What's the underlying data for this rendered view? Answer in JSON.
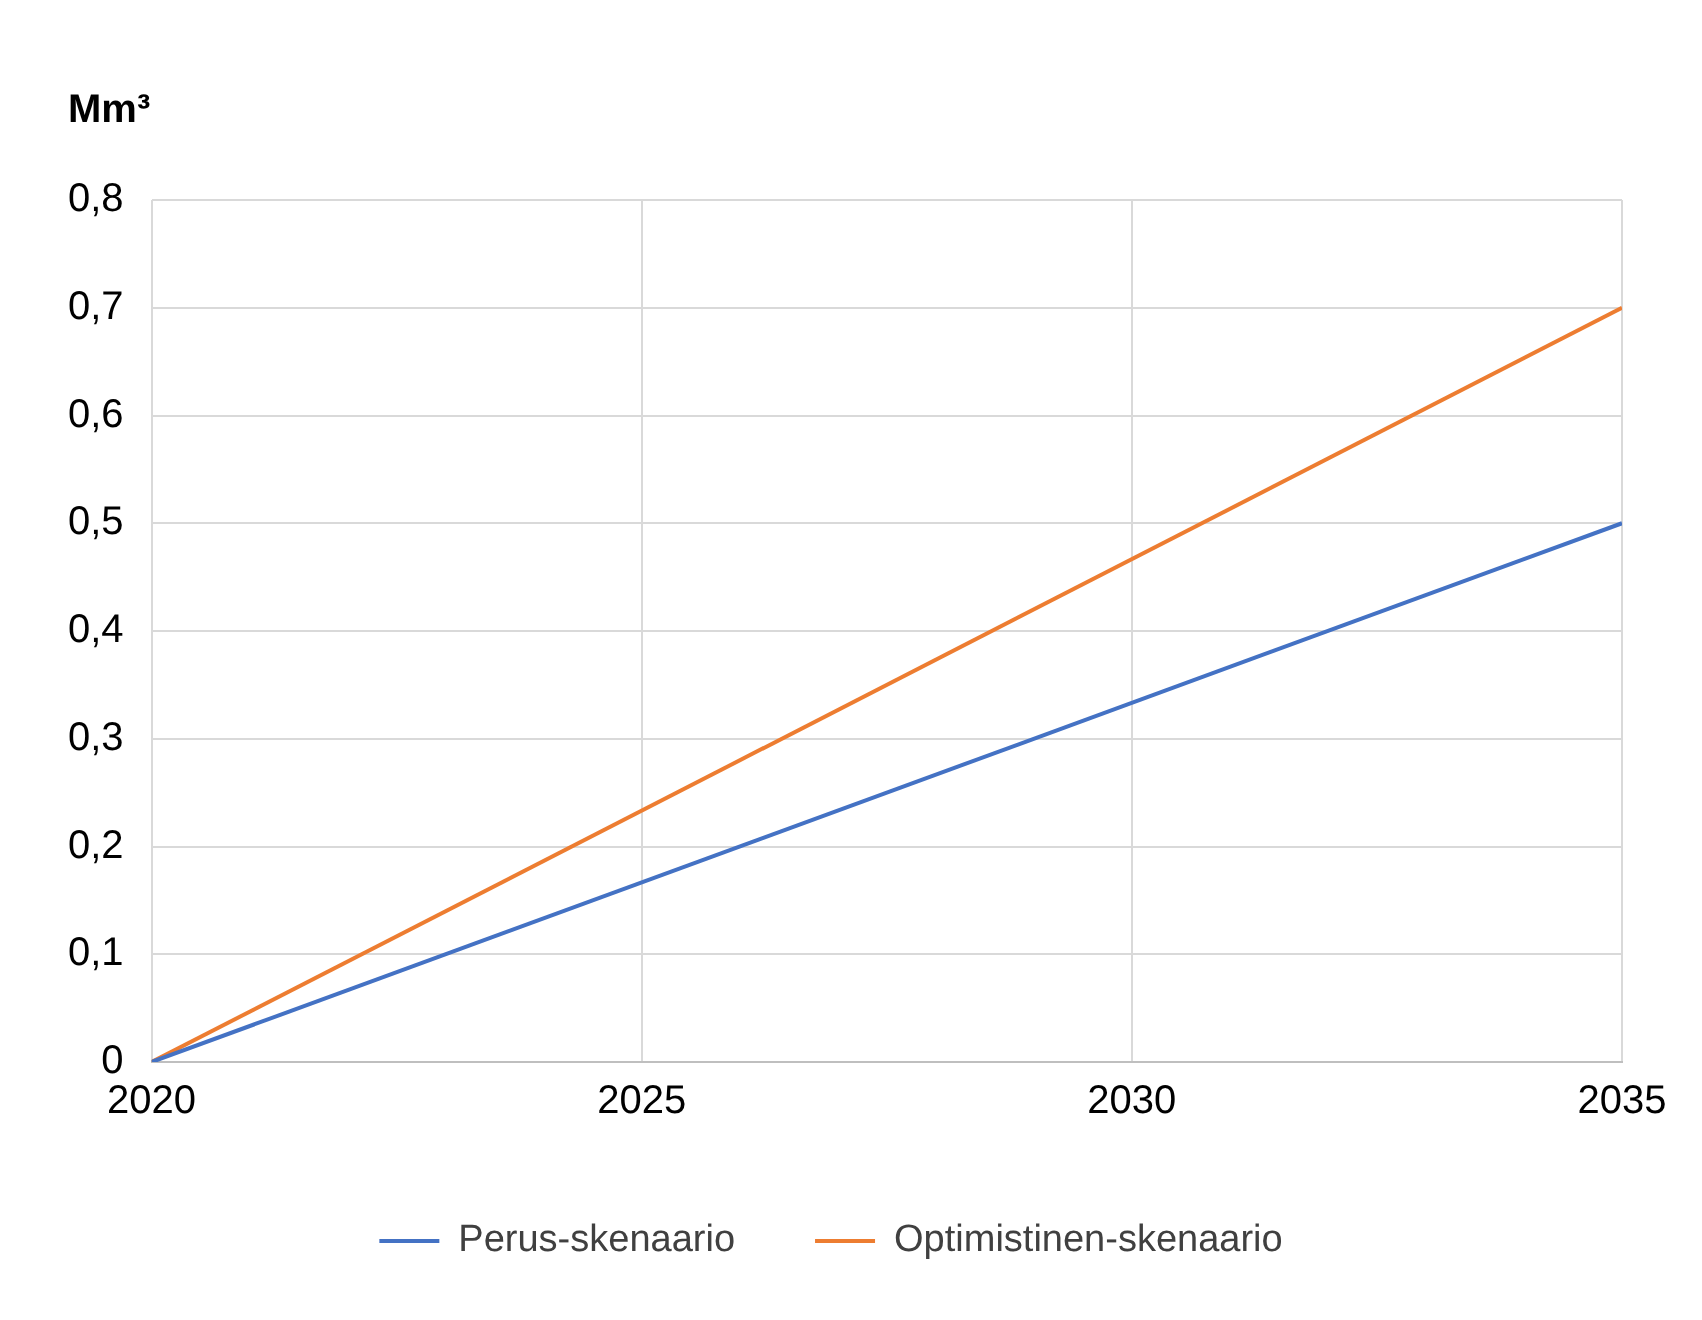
{
  "chart_data": {
    "type": "line",
    "ylabel": "Mm³",
    "x": [
      2020,
      2035
    ],
    "series": [
      {
        "name": "Perus-skenaario",
        "color": "#4472c4",
        "values": [
          0,
          0.5
        ]
      },
      {
        "name": "Optimistinen-skenaario",
        "color": "#ed7d31",
        "values": [
          0,
          0.7
        ]
      }
    ],
    "xlim": [
      2020,
      2035
    ],
    "xticks": [
      2020,
      2025,
      2030,
      2035
    ],
    "ylim": [
      0,
      0.8
    ],
    "yticks": [
      0,
      {
        "value": 0.1,
        "label": "0,1"
      },
      {
        "value": 0.2,
        "label": "0,2"
      },
      {
        "value": 0.3,
        "label": "0,3"
      },
      {
        "value": 0.4,
        "label": "0,4"
      },
      {
        "value": 0.5,
        "label": "0,5"
      },
      {
        "value": 0.6,
        "label": "0,6"
      },
      {
        "value": 0.7,
        "label": "0,7"
      },
      {
        "value": 0.8,
        "label": "0,8"
      }
    ],
    "grid": true,
    "legend": "bottom",
    "marker": "none",
    "line_style": "solid"
  }
}
